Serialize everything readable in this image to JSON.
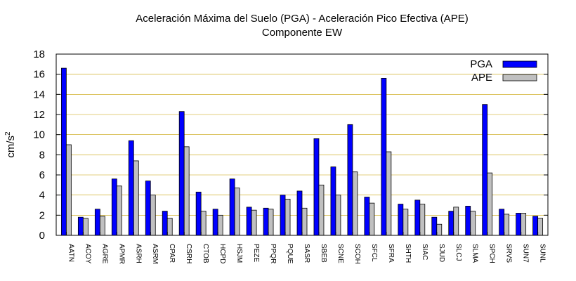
{
  "chart_data": {
    "type": "bar",
    "title": "Aceleración Máxima del Suelo (PGA) -  Aceleración Pico Efectiva (APE)",
    "subtitle": "Componente EW",
    "ylabel_base": "cm/s",
    "ylabel_exp": "2",
    "ylim": [
      0,
      18
    ],
    "yticks": [
      0,
      2,
      4,
      6,
      8,
      10,
      12,
      14,
      16,
      18
    ],
    "legend_position": "top-right",
    "grid": true,
    "categories": [
      "AATN",
      "ACOY",
      "AGRE",
      "APMR",
      "ASRH",
      "ASRM",
      "CPAR",
      "CSRH",
      "CTOB",
      "HCPD",
      "HSJM",
      "PEZE",
      "PPQR",
      "PQUE",
      "SASR",
      "SBEB",
      "SCNE",
      "SCOH",
      "SFCL",
      "SFRA",
      "SHTH",
      "SIAC",
      "SJUD",
      "SLCJ",
      "SLMA",
      "SPCH",
      "SRVS",
      "SUN7",
      "SUNL"
    ],
    "series": [
      {
        "name": "PGA",
        "color": "#0000ff",
        "values": [
          16.6,
          1.8,
          2.6,
          5.6,
          9.4,
          5.4,
          2.4,
          12.3,
          4.3,
          2.6,
          5.6,
          2.8,
          2.7,
          4.0,
          4.4,
          9.6,
          6.8,
          11.0,
          3.8,
          15.6,
          3.1,
          3.5,
          1.8,
          2.4,
          2.9,
          13.0,
          2.6,
          2.2,
          1.9
        ]
      },
      {
        "name": "APE",
        "color": "#c0c0c0",
        "values": [
          9.0,
          1.7,
          1.9,
          4.9,
          7.4,
          4.0,
          1.7,
          8.8,
          2.4,
          2.0,
          4.7,
          2.5,
          2.6,
          3.6,
          2.7,
          5.0,
          4.0,
          6.3,
          3.2,
          8.3,
          2.6,
          3.1,
          1.1,
          2.8,
          2.4,
          6.2,
          2.1,
          2.2,
          1.7
        ]
      }
    ]
  }
}
